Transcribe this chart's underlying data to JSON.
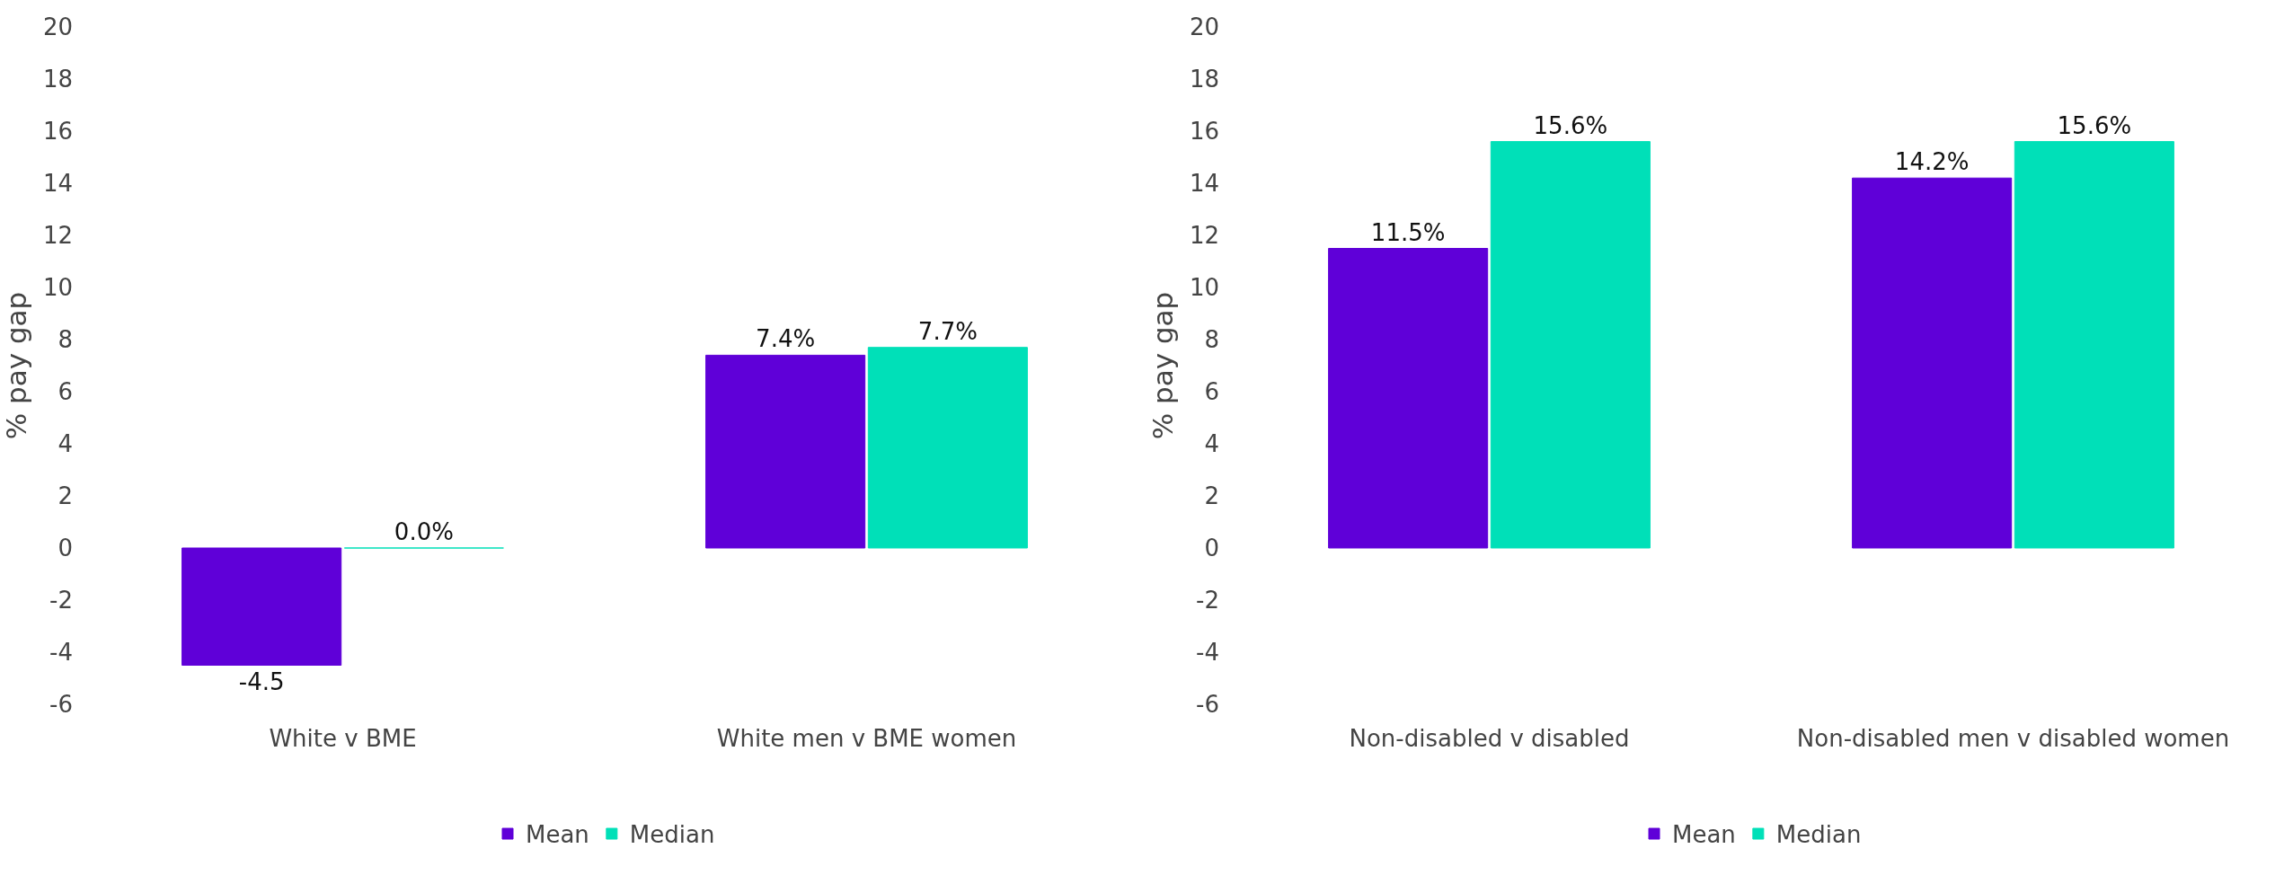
{
  "chart_data": [
    {
      "type": "bar",
      "categories": [
        "White v BME",
        "White men v BME women"
      ],
      "ylabel": "% pay gap",
      "ylim": [
        -6,
        20
      ],
      "yticks": [
        -6,
        -4,
        -2,
        0,
        2,
        4,
        6,
        8,
        10,
        12,
        14,
        16,
        18,
        20
      ],
      "grid": false,
      "legend": "bottom",
      "series": [
        {
          "name": "Mean",
          "color": "#5f00d8",
          "values": [
            -4.5,
            7.4
          ],
          "value_labels": [
            "-4.5",
            "7.4%"
          ]
        },
        {
          "name": "Median",
          "color": "#00e0b8",
          "values": [
            0.0,
            7.7
          ],
          "value_labels": [
            "0.0%",
            "7.7%"
          ]
        }
      ]
    },
    {
      "type": "bar",
      "categories": [
        "Non-disabled v disabled",
        "Non-disabled men v disabled women"
      ],
      "ylabel": "% pay gap",
      "ylim": [
        -6,
        20
      ],
      "yticks": [
        -6,
        -4,
        -2,
        0,
        2,
        4,
        6,
        8,
        10,
        12,
        14,
        16,
        18,
        20
      ],
      "grid": false,
      "legend": "bottom",
      "series": [
        {
          "name": "Mean",
          "color": "#5f00d8",
          "values": [
            11.5,
            14.2
          ],
          "value_labels": [
            "11.5%",
            "14.2%"
          ]
        },
        {
          "name": "Median",
          "color": "#00e0b8",
          "values": [
            15.6,
            15.6
          ],
          "value_labels": [
            "15.6%",
            "15.6%"
          ]
        }
      ]
    }
  ]
}
